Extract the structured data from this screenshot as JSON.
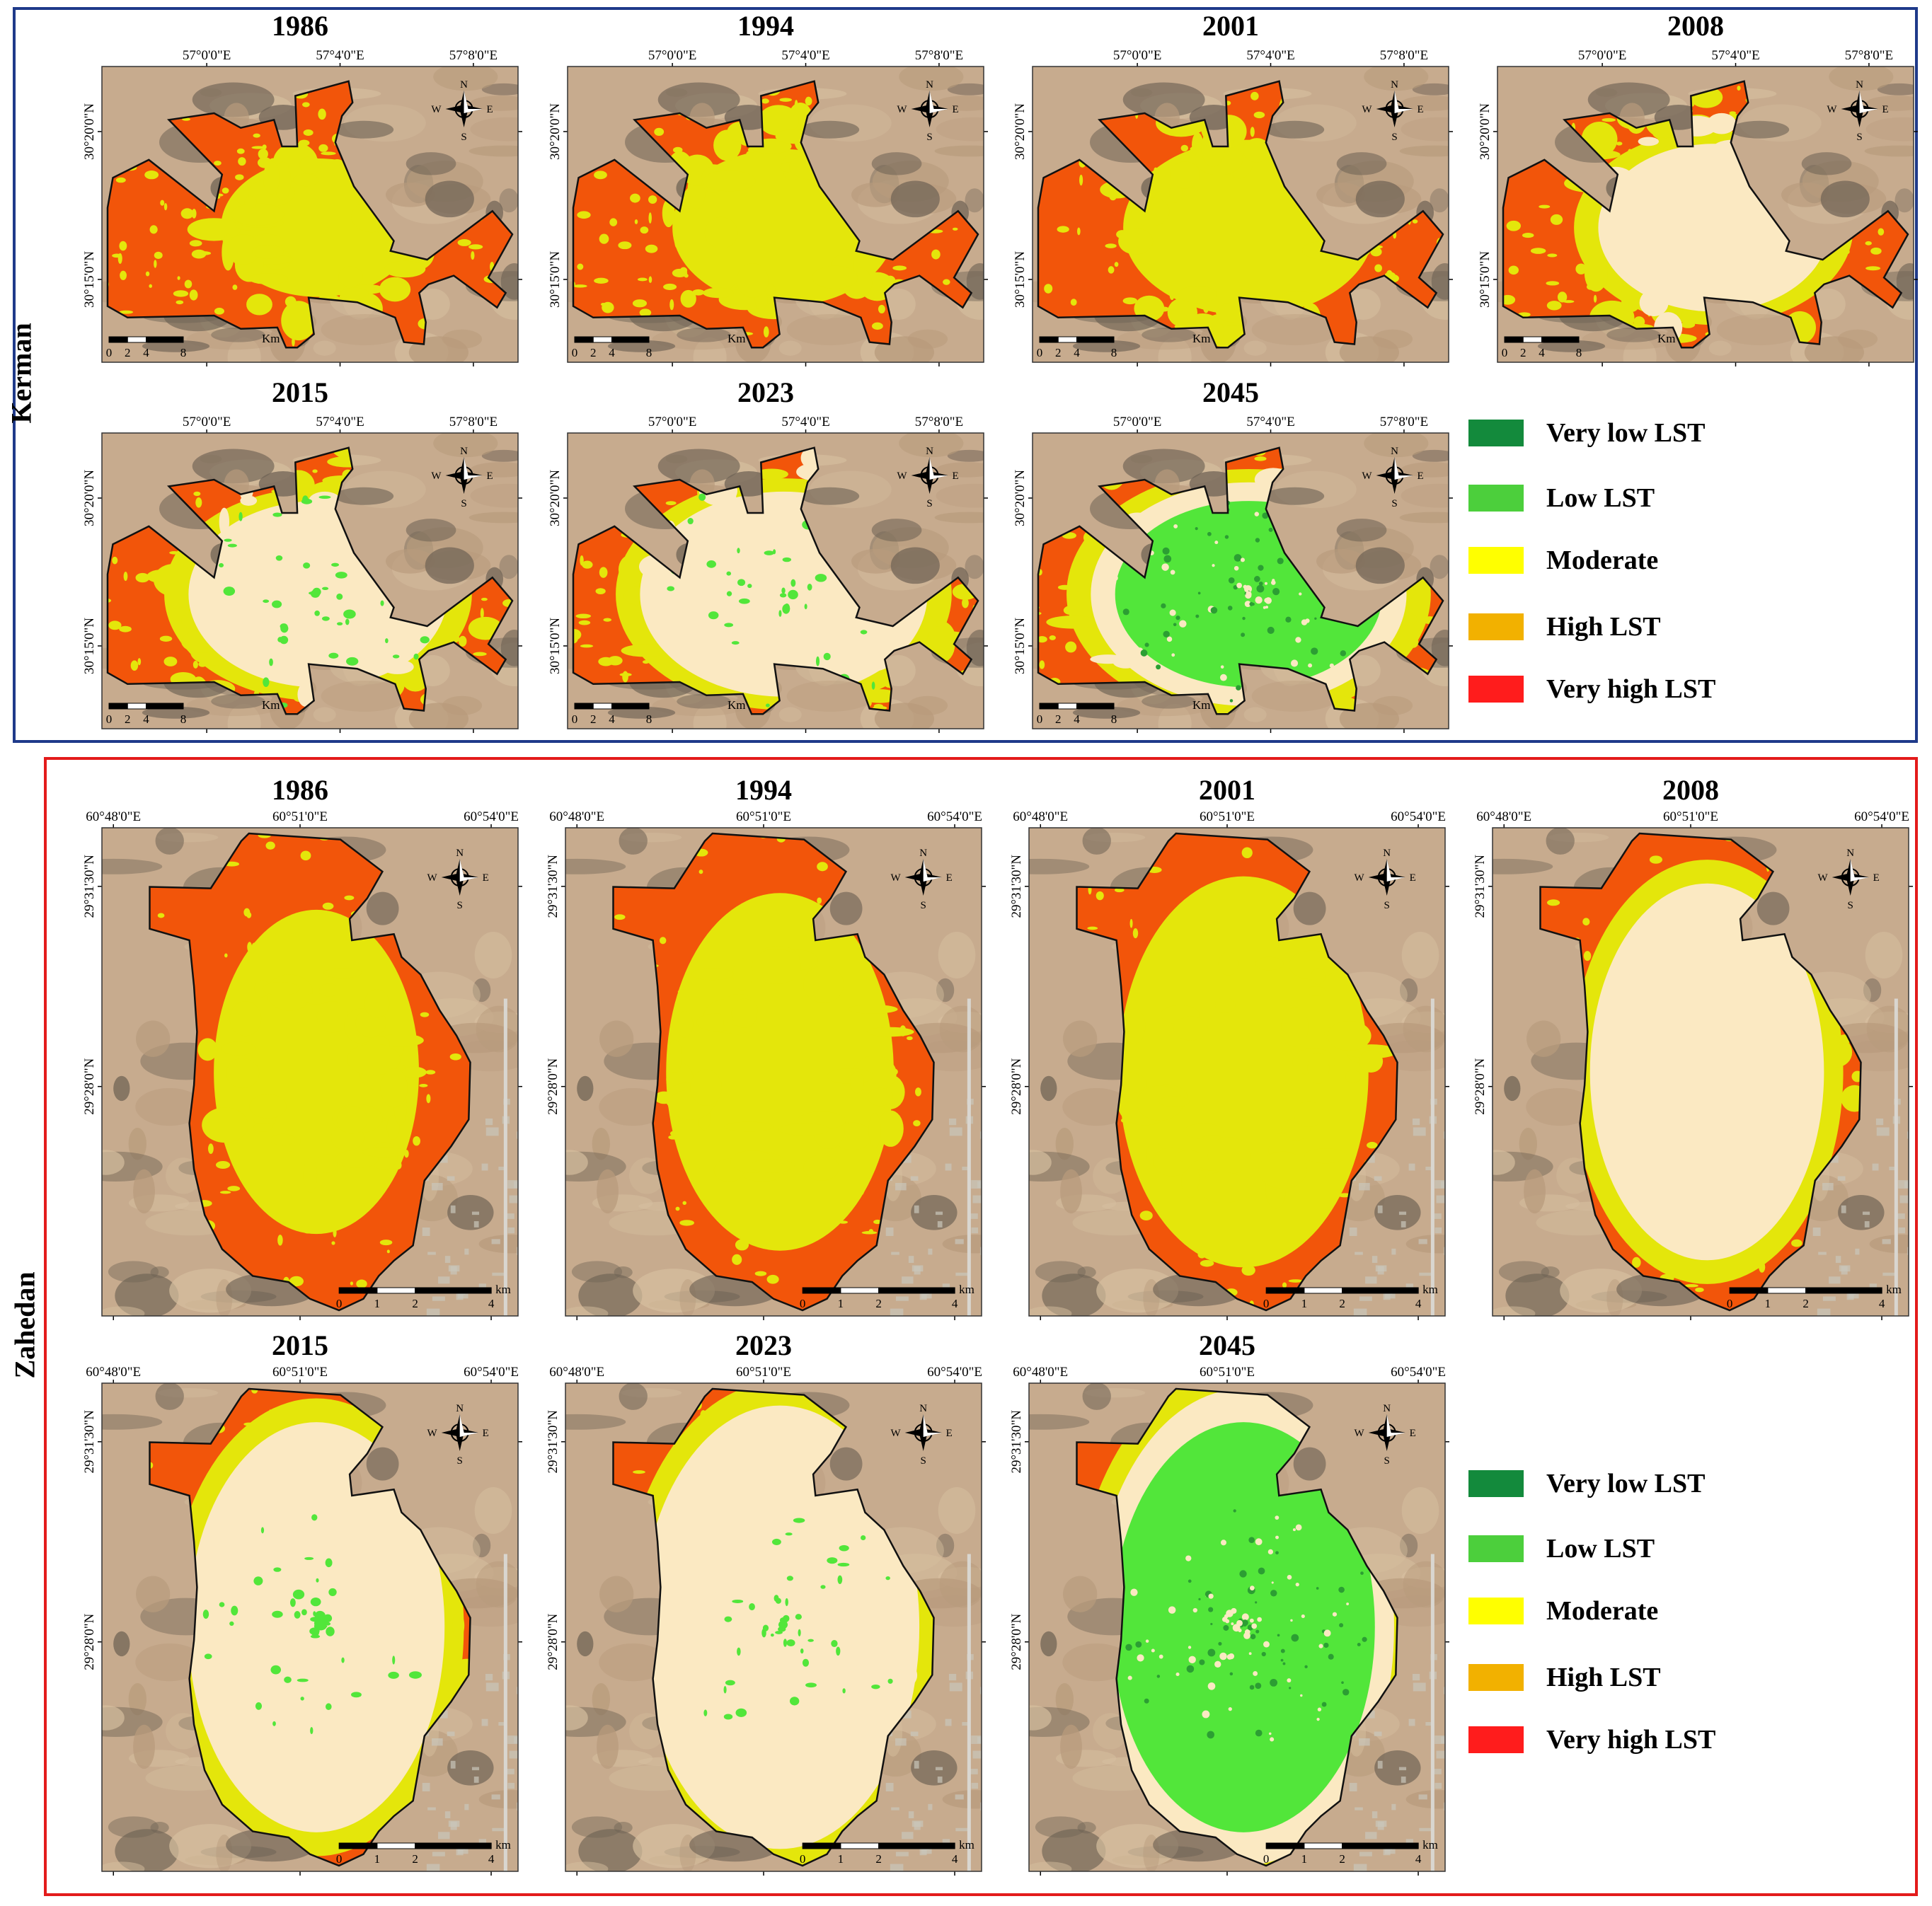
{
  "legend": [
    {
      "label": "Very low LST",
      "color": "#138a3c"
    },
    {
      "label": "Low LST",
      "color": "#4ccf3c"
    },
    {
      "label": "Moderate",
      "color": "#ffff00"
    },
    {
      "label": "High LST",
      "color": "#f2b100"
    },
    {
      "label": "Very high LST",
      "color": "#ff1c1c"
    }
  ],
  "map_colors": {
    "background": "#c7ab8e",
    "dark": "#6f6355",
    "urban": "#c9c6bb",
    "orange": "#f2550a",
    "yellow": "#e4e60b",
    "cream": "#fbe9c2",
    "lightgreen": "#52e63a",
    "darkgreen": "#2c9e33",
    "frame_kerman": "#1f3a8a",
    "frame_zahedan": "#e31b1b"
  },
  "kerman": {
    "region_label": "Kerman",
    "lon_ticks": [
      "57°0'0\"E",
      "57°4'0\"E",
      "57°8'0\"E"
    ],
    "lat_ticks": [
      "30°20'0\"N",
      "30°15'0\"N"
    ],
    "scale_labels": [
      "0",
      "2",
      "4",
      "8"
    ],
    "scale_unit": "Km",
    "compass": {
      "n": "N",
      "s": "S",
      "e": "E",
      "w": "W"
    },
    "panels": [
      {
        "year": "1986",
        "urban_class": "yellow",
        "core_green": 0
      },
      {
        "year": "1994",
        "urban_class": "yellow",
        "core_green": 0
      },
      {
        "year": "2001",
        "urban_class": "yellow",
        "core_green": 0
      },
      {
        "year": "2008",
        "urban_class": "cream",
        "core_green": 0
      },
      {
        "year": "2015",
        "urban_class": "cream",
        "core_green": 1
      },
      {
        "year": "2023",
        "urban_class": "cream",
        "core_green": 1
      },
      {
        "year": "2045",
        "urban_class": "green",
        "core_green": 2
      }
    ]
  },
  "zahedan": {
    "region_label": "Zahedan",
    "lon_ticks": [
      "60°48'0\"E",
      "60°51'0\"E",
      "60°54'0\"E"
    ],
    "lat_ticks": [
      "29°31'30\"N",
      "29°28'0\"N"
    ],
    "scale_labels": [
      "0",
      "1",
      "2",
      "4"
    ],
    "scale_unit": "km",
    "compass": {
      "n": "N",
      "s": "S",
      "e": "E",
      "w": "W"
    },
    "panels": [
      {
        "year": "1986",
        "urban_class": "yellow",
        "core_green": 0
      },
      {
        "year": "1994",
        "urban_class": "yellow",
        "core_green": 0
      },
      {
        "year": "2001",
        "urban_class": "yellow",
        "core_green": 0
      },
      {
        "year": "2008",
        "urban_class": "cream",
        "core_green": 0
      },
      {
        "year": "2015",
        "urban_class": "cream",
        "core_green": 1
      },
      {
        "year": "2023",
        "urban_class": "cream",
        "core_green": 1
      },
      {
        "year": "2045",
        "urban_class": "green",
        "core_green": 2
      }
    ]
  }
}
